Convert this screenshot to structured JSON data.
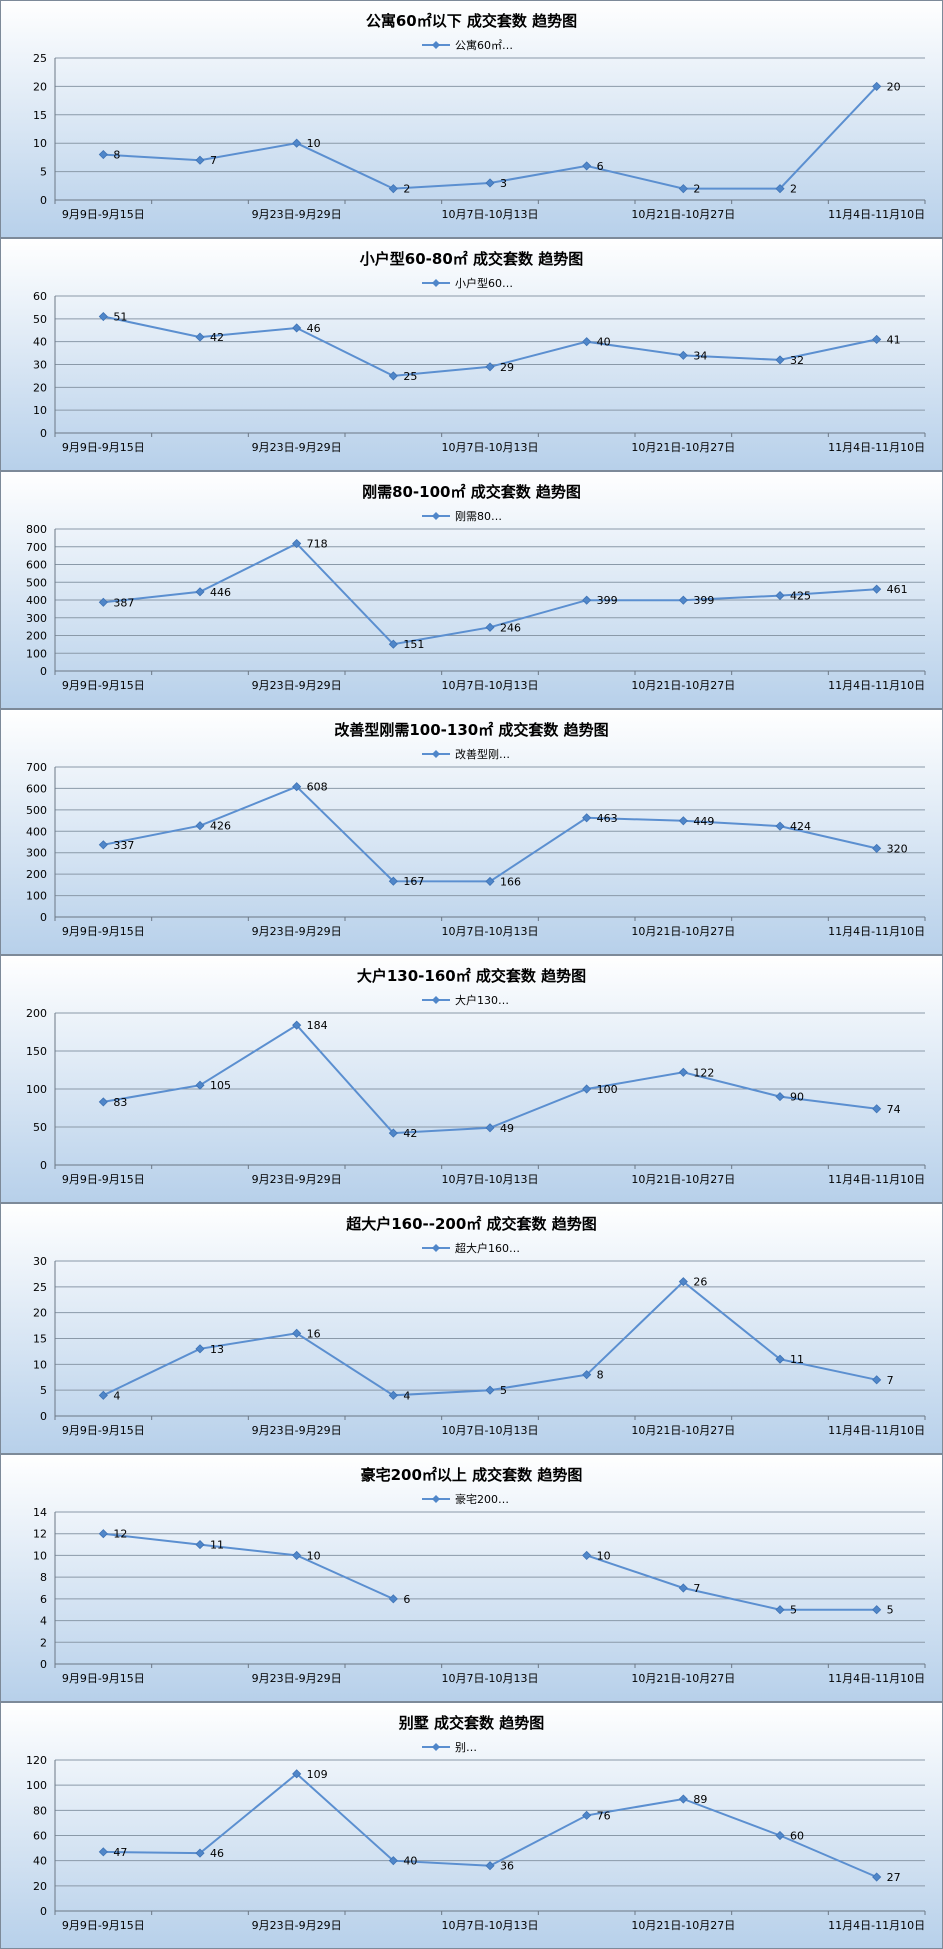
{
  "colors": {
    "line": "#5b8fd0",
    "marker": "#4f86c9",
    "gradient_top": "#ffffff",
    "gradient_bottom": "#b7d0ea",
    "frame": "#7d8a99"
  },
  "chart_data": [
    {
      "type": "line",
      "title": "公寓60㎡以下 成交套数 趋势图",
      "legend": "公寓60㎡…",
      "legend_position": "top",
      "categories": [
        "9月9日-9月15日",
        "",
        "9月23日-9月29日",
        "",
        "10月7日-10月13日",
        "",
        "10月21日-10月27日",
        "",
        "11月4日-11月10日"
      ],
      "values": [
        8,
        7,
        10,
        2,
        3,
        6,
        2,
        2,
        20
      ],
      "ylim": [
        0,
        25
      ],
      "yticks": [
        0,
        5,
        10,
        15,
        20,
        25
      ],
      "grid": true
    },
    {
      "type": "line",
      "title": "小户型60-80㎡ 成交套数 趋势图",
      "legend": "小户型60…",
      "legend_position": "top",
      "categories": [
        "9月9日-9月15日",
        "",
        "9月23日-9月29日",
        "",
        "10月7日-10月13日",
        "",
        "10月21日-10月27日",
        "",
        "11月4日-11月10日"
      ],
      "values": [
        51,
        42,
        46,
        25,
        29,
        40,
        34,
        32,
        41
      ],
      "ylim": [
        0,
        60
      ],
      "yticks": [
        0,
        10,
        20,
        30,
        40,
        50,
        60
      ],
      "grid": true
    },
    {
      "type": "line",
      "title": "刚需80-100㎡ 成交套数 趋势图",
      "legend": "刚需80…",
      "legend_position": "top",
      "categories": [
        "9月9日-9月15日",
        "",
        "9月23日-9月29日",
        "",
        "10月7日-10月13日",
        "",
        "10月21日-10月27日",
        "",
        "11月4日-11月10日"
      ],
      "values": [
        387,
        446,
        718,
        151,
        246,
        399,
        399,
        425,
        461
      ],
      "ylim": [
        0,
        800
      ],
      "yticks": [
        0,
        100,
        200,
        300,
        400,
        500,
        600,
        700,
        800
      ],
      "grid": true
    },
    {
      "type": "line",
      "title": "改善型刚需100-130㎡ 成交套数 趋势图",
      "legend": "改善型刚…",
      "legend_position": "top",
      "categories": [
        "9月9日-9月15日",
        "",
        "9月23日-9月29日",
        "",
        "10月7日-10月13日",
        "",
        "10月21日-10月27日",
        "",
        "11月4日-11月10日"
      ],
      "values": [
        337,
        426,
        608,
        167,
        166,
        463,
        449,
        424,
        320
      ],
      "ylim": [
        0,
        700
      ],
      "yticks": [
        0,
        100,
        200,
        300,
        400,
        500,
        600,
        700
      ],
      "grid": true
    },
    {
      "type": "line",
      "title": "大户130-160㎡ 成交套数 趋势图",
      "legend": "大户130…",
      "legend_position": "top",
      "categories": [
        "9月9日-9月15日",
        "",
        "9月23日-9月29日",
        "",
        "10月7日-10月13日",
        "",
        "10月21日-10月27日",
        "",
        "11月4日-11月10日"
      ],
      "values": [
        83,
        105,
        184,
        42,
        49,
        100,
        122,
        90,
        74
      ],
      "ylim": [
        0,
        200
      ],
      "yticks": [
        0,
        50,
        100,
        150,
        200
      ],
      "grid": true
    },
    {
      "type": "line",
      "title": "超大户160--200㎡ 成交套数 趋势图",
      "legend": "超大户160…",
      "legend_position": "top",
      "categories": [
        "9月9日-9月15日",
        "",
        "9月23日-9月29日",
        "",
        "10月7日-10月13日",
        "",
        "10月21日-10月27日",
        "",
        "11月4日-11月10日"
      ],
      "values": [
        4,
        13,
        16,
        4,
        5,
        8,
        26,
        11,
        7
      ],
      "ylim": [
        0,
        30
      ],
      "yticks": [
        0,
        5,
        10,
        15,
        20,
        25,
        30
      ],
      "grid": true
    },
    {
      "type": "line",
      "title": "豪宅200㎡以上 成交套数 趋势图",
      "legend": "豪宅200…",
      "legend_position": "top",
      "categories": [
        "9月9日-9月15日",
        "",
        "9月23日-9月29日",
        "",
        "10月7日-10月13日",
        "",
        "10月21日-10月27日",
        "",
        "11月4日-11月10日"
      ],
      "values": [
        12,
        11,
        10,
        6,
        null,
        10,
        7,
        5,
        5
      ],
      "ylim": [
        0,
        14
      ],
      "yticks": [
        0,
        2,
        4,
        6,
        8,
        10,
        12,
        14
      ],
      "grid": true
    },
    {
      "type": "line",
      "title": "别墅 成交套数 趋势图",
      "legend": "别…",
      "legend_position": "top",
      "categories": [
        "9月9日-9月15日",
        "",
        "9月23日-9月29日",
        "",
        "10月7日-10月13日",
        "",
        "10月21日-10月27日",
        "",
        "11月4日-11月10日"
      ],
      "values": [
        47,
        46,
        109,
        40,
        36,
        76,
        89,
        60,
        27
      ],
      "ylim": [
        0,
        120
      ],
      "yticks": [
        0,
        20,
        40,
        60,
        80,
        100,
        120
      ],
      "grid": true
    }
  ]
}
